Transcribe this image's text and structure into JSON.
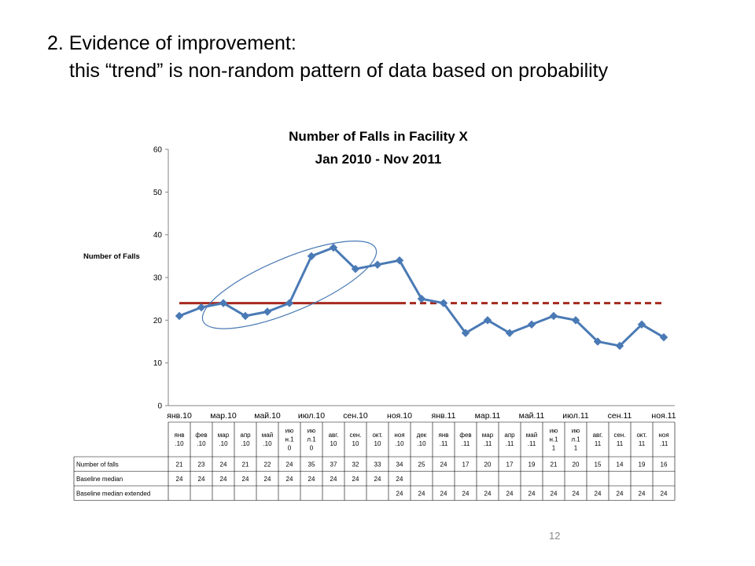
{
  "slide": {
    "heading_line1": "2. Evidence of improvement:",
    "heading_line2": "this “trend” is non-random pattern of data based on probability",
    "page_number": "12"
  },
  "chart_data": {
    "type": "line",
    "title_line1": "Number of Falls in Facility X",
    "title_line2": "Jan 2010 - Nov 2011",
    "ylabel": "Number of Falls",
    "ylim": [
      0,
      60
    ],
    "yticks": [
      0,
      10,
      20,
      30,
      40,
      50,
      60
    ],
    "x_axis_labels": [
      "янв.10",
      "мар.10",
      "май.10",
      "июл.10",
      "сен.10",
      "ноя.10",
      "янв.11",
      "мар.11",
      "май.11",
      "июл.11",
      "сен.11",
      "ноя.11"
    ],
    "table_header_lines": [
      [
        "янв",
        ".10"
      ],
      [
        "фев",
        ".10"
      ],
      [
        "мар",
        ".10"
      ],
      [
        "апр",
        ".10"
      ],
      [
        "май",
        ".10"
      ],
      [
        "ию",
        "н.1",
        "0"
      ],
      [
        "ию",
        "л.1",
        "0"
      ],
      [
        "авг.",
        "10"
      ],
      [
        "сен.",
        "10"
      ],
      [
        "окт.",
        "10"
      ],
      [
        "ноя",
        ".10"
      ],
      [
        "дек",
        ".10"
      ],
      [
        "янв",
        ".11"
      ],
      [
        "фев",
        ".11"
      ],
      [
        "мар",
        ".11"
      ],
      [
        "апр",
        ".11"
      ],
      [
        "май",
        ".11"
      ],
      [
        "ию",
        "н.1",
        "1"
      ],
      [
        "ию",
        "л.1",
        "1"
      ],
      [
        "авг.",
        "11"
      ],
      [
        "сен.",
        "11"
      ],
      [
        "окт.",
        "11"
      ],
      [
        "ноя",
        ".11"
      ]
    ],
    "series": [
      {
        "name": "Number of falls",
        "color": "#4a7ab5",
        "values": [
          21,
          23,
          24,
          21,
          22,
          24,
          35,
          37,
          32,
          33,
          34,
          25,
          24,
          17,
          20,
          17,
          19,
          21,
          20,
          15,
          14,
          19,
          16
        ]
      },
      {
        "name": "Baseline median",
        "color": "#a52a1f",
        "values": [
          24,
          24,
          24,
          24,
          24,
          24,
          24,
          24,
          24,
          24,
          24,
          null,
          null,
          null,
          null,
          null,
          null,
          null,
          null,
          null,
          null,
          null,
          null
        ]
      },
      {
        "name": "Baseline median extended",
        "color": "#a52a1f",
        "values": [
          null,
          null,
          null,
          null,
          null,
          null,
          null,
          null,
          null,
          null,
          24,
          24,
          24,
          24,
          24,
          24,
          24,
          24,
          24,
          24,
          24,
          24,
          24
        ]
      }
    ],
    "annotation": {
      "type": "ellipse",
      "spans_points": [
        2,
        8
      ],
      "color": "#4a7ab5"
    },
    "grid": false,
    "legend": "data-table-below"
  }
}
